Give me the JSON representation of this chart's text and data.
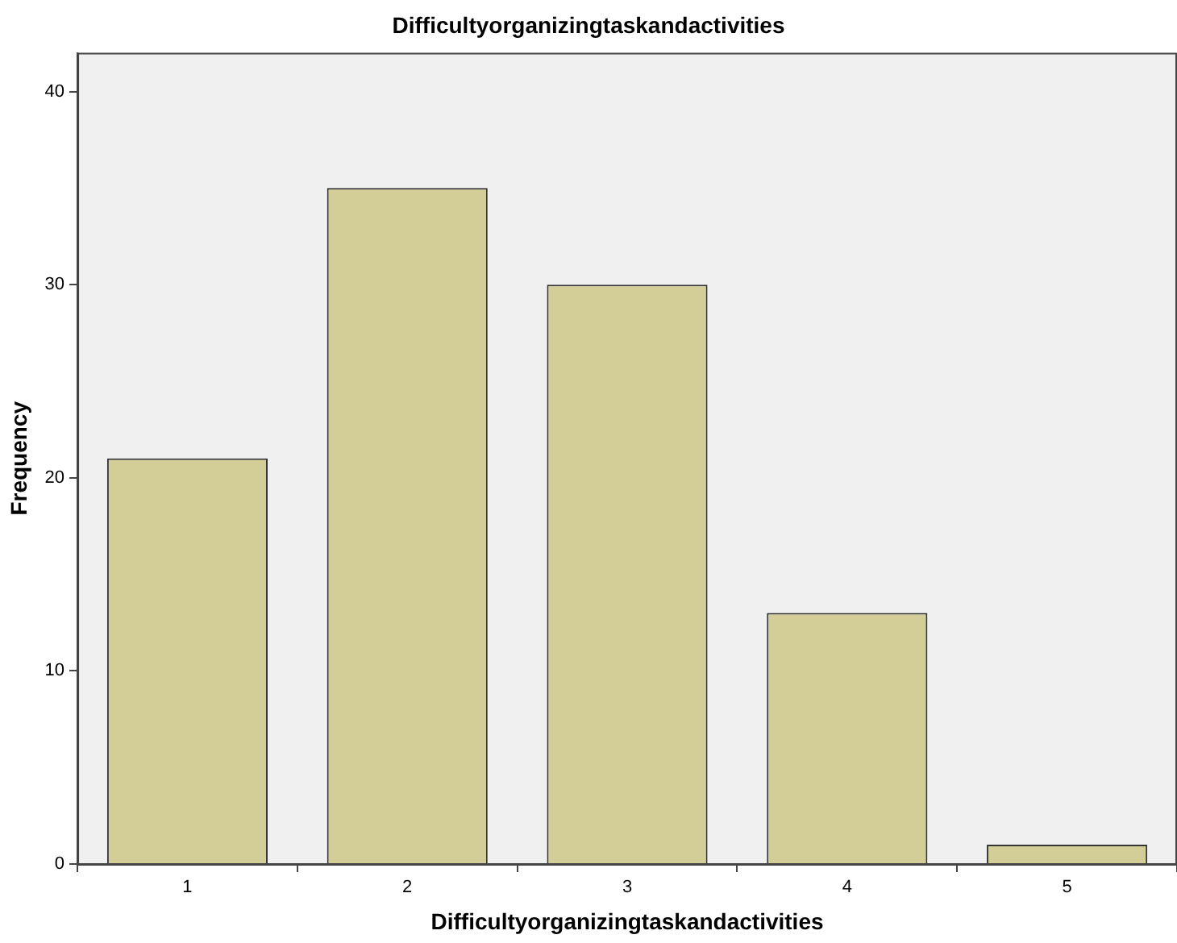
{
  "chart_data": {
    "type": "bar",
    "title": "Difficultyorganizingtaskandactivities",
    "xlabel": "Difficultyorganizingtaskandactivities",
    "ylabel": "Frequency",
    "categories": [
      "1",
      "2",
      "3",
      "4",
      "5"
    ],
    "values": [
      21,
      35,
      30,
      13,
      1
    ],
    "color": "#d3ce97",
    "ylim": [
      0,
      42
    ],
    "yticks": [
      0,
      10,
      20,
      30,
      40
    ],
    "grid": false,
    "legend": false
  }
}
